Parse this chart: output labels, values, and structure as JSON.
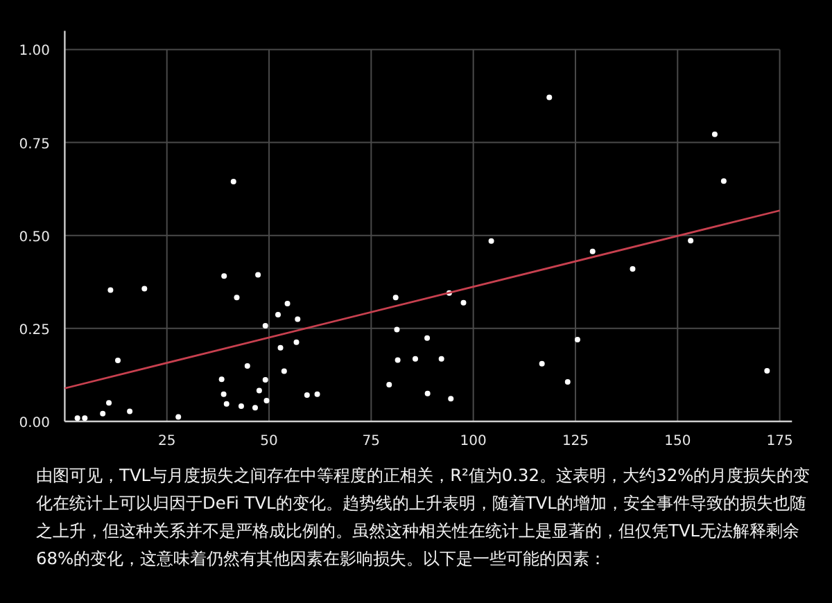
{
  "chart_data": {
    "type": "scatter",
    "series": [
      {
        "color": "#ffffff",
        "marker": "circle",
        "x": [
          3.1,
          4.9,
          9.3,
          10.8,
          11.2,
          13.0,
          15.9,
          19.5,
          27.8,
          41.3,
          39.0,
          42.1,
          38.4,
          38.9,
          39.6,
          43.2,
          44.7,
          46.6,
          47.3,
          47.6,
          49.1,
          49.1,
          49.4,
          52.2,
          52.8,
          53.7,
          54.5,
          56.7,
          57.0,
          59.3,
          61.8,
          79.4,
          81.0,
          81.3,
          81.5,
          85.8,
          88.7,
          88.8,
          92.2,
          94.1,
          94.5,
          97.6,
          104.4,
          116.8,
          118.6,
          123.1,
          125.5,
          129.2,
          139.0,
          153.2,
          159.1,
          161.3,
          171.9
        ],
        "values": [
          0.009,
          0.009,
          0.021,
          0.05,
          0.353,
          0.164,
          0.027,
          0.357,
          0.012,
          0.645,
          0.391,
          0.333,
          0.113,
          0.073,
          0.047,
          0.041,
          0.149,
          0.037,
          0.394,
          0.083,
          0.112,
          0.257,
          0.056,
          0.287,
          0.198,
          0.135,
          0.317,
          0.213,
          0.275,
          0.071,
          0.073,
          0.099,
          0.333,
          0.247,
          0.165,
          0.168,
          0.224,
          0.075,
          0.168,
          0.345,
          0.061,
          0.319,
          0.485,
          0.155,
          0.871,
          0.106,
          0.22,
          0.457,
          0.41,
          0.486,
          0.772,
          0.646,
          0.136
        ]
      },
      {
        "type": "line",
        "marker": "none",
        "color": "#c8404f",
        "x": [
          0,
          175
        ],
        "values": [
          0.089,
          0.567
        ]
      }
    ],
    "xlim": [
      0,
      178
    ],
    "ylim": [
      0,
      1.05
    ],
    "xticks": [
      25,
      50,
      75,
      100,
      125,
      150,
      175
    ],
    "yticks": [
      {
        "value": 0,
        "label": "0.00"
      },
      {
        "value": 0.25,
        "label": "0.25"
      },
      {
        "value": 0.5,
        "label": "0.50"
      },
      {
        "value": 0.75,
        "label": "0.75"
      },
      {
        "value": 1,
        "label": "1.00"
      }
    ],
    "grid": true,
    "annotations": [
      "由图可见，TVL与月度损失之间存在中等程度的正相关，R²值为0.32。这表明，大约32%的月度损失的变化在统计上可以归因于DeFi TVL的变化。趋势线的上升表明，随着TVL的增加，安全事件导致的损失也随之上升，但这种关系并不是严格成比例的。虽然这种相关性在统计上是显著的，但仅凭TVL无法解释剩余68%的变化，这意味着仍然有其他因素在影响损失。以下是一些可能的因素："
    ]
  }
}
